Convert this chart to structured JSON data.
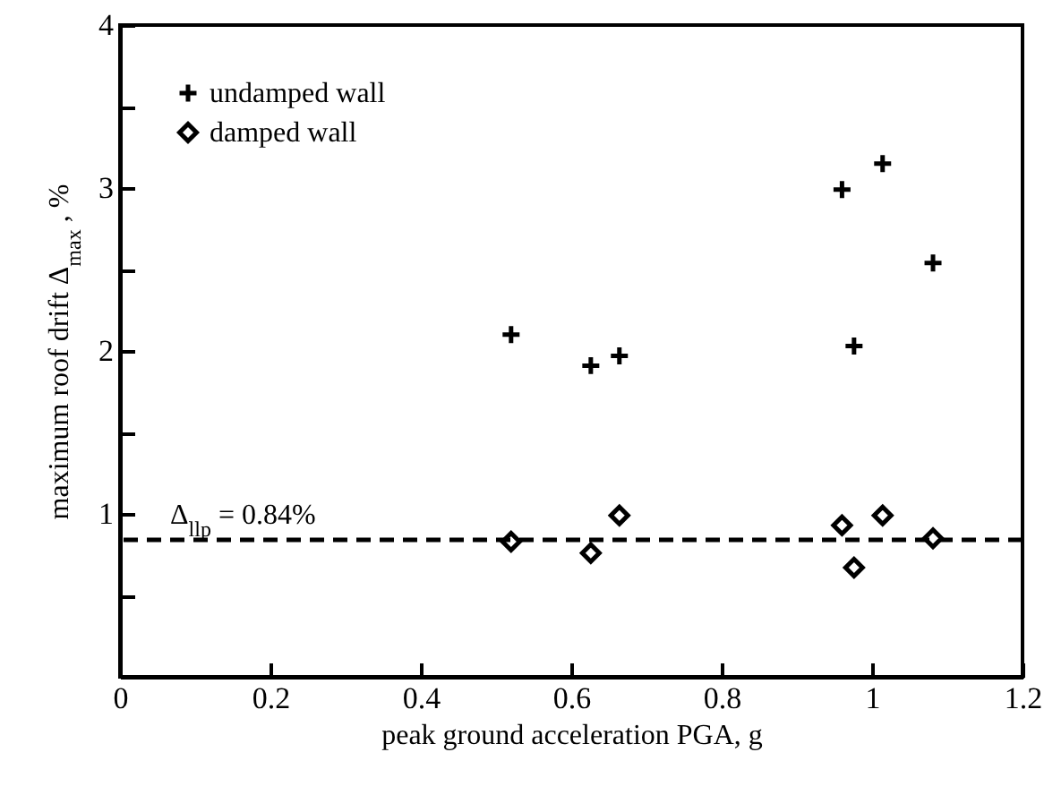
{
  "chart_data": {
    "type": "scatter",
    "xlabel": "peak ground acceleration PGA, g",
    "ylabel": "maximum roof drift Δ$_{max}$ , %",
    "xlim": [
      0,
      1.2
    ],
    "xticks": [
      0,
      0.2,
      0.4,
      0.6,
      0.8,
      1,
      1.2
    ],
    "ylim": [
      0,
      4
    ],
    "yticks": [
      {
        "value": 0,
        "label": null
      },
      {
        "value": 0.5,
        "label": null
      },
      1,
      {
        "value": 1.5,
        "label": null
      },
      2,
      {
        "value": 2.5,
        "label": null
      },
      3,
      {
        "value": 3.5,
        "label": null
      },
      4
    ],
    "series": [
      {
        "name": "undamped wall",
        "color": "#000000",
        "marker": "cross",
        "x": [
          0.52,
          0.626,
          0.664,
          0.96,
          0.976,
          1.014,
          1.081
        ],
        "values": [
          2.1,
          1.91,
          1.97,
          2.99,
          2.03,
          3.15,
          2.54
        ]
      },
      {
        "name": "damped wall",
        "color": "#000000",
        "marker": "diamond",
        "x": [
          0.52,
          0.626,
          0.664,
          0.96,
          0.976,
          1.014,
          1.081
        ],
        "values": [
          0.83,
          0.76,
          0.99,
          0.93,
          0.67,
          0.99,
          0.85
        ]
      }
    ],
    "ref_lines": [
      {
        "axis": "y",
        "value": 0.84,
        "label": "Δ$_{llp}$ = 0.84%",
        "line_style": "dashed",
        "color": "#000000"
      }
    ],
    "legend": "top left",
    "grid": false
  }
}
